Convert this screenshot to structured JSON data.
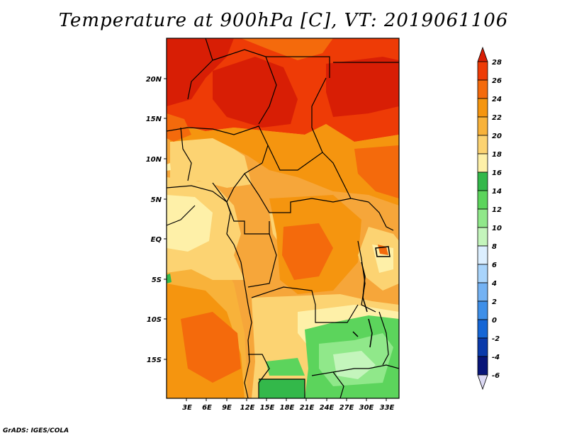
{
  "title": "Temperature at 900hPa [C], VT: 2019061106",
  "credit": "GrADS: IGES/COLA",
  "map": {
    "lat_labels": [
      "20N",
      "15N",
      "10N",
      "5N",
      "EQ",
      "5S",
      "10S",
      "15S"
    ],
    "lon_labels": [
      "3E",
      "6E",
      "9E",
      "12E",
      "15E",
      "18E",
      "21E",
      "24E",
      "27E",
      "30E",
      "33E"
    ]
  },
  "colorbar": {
    "unit": "C",
    "levels": [
      "28",
      "26",
      "24",
      "22",
      "20",
      "18",
      "16",
      "14",
      "12",
      "10",
      "8",
      "6",
      "4",
      "2",
      "0",
      "-2",
      "-4",
      "-6"
    ],
    "colors": [
      "#d81e05",
      "#ee3b06",
      "#f46a0c",
      "#f5950f",
      "#f8b23a",
      "#fcd372",
      "#fef0a8",
      "#33b84a",
      "#5cd45c",
      "#90e88a",
      "#c4f5bc",
      "#dcefff",
      "#a9d4fb",
      "#74b2f3",
      "#3e8fe8",
      "#1566d6",
      "#0a3aaa",
      "#081578",
      "#dcd9f4"
    ]
  }
}
